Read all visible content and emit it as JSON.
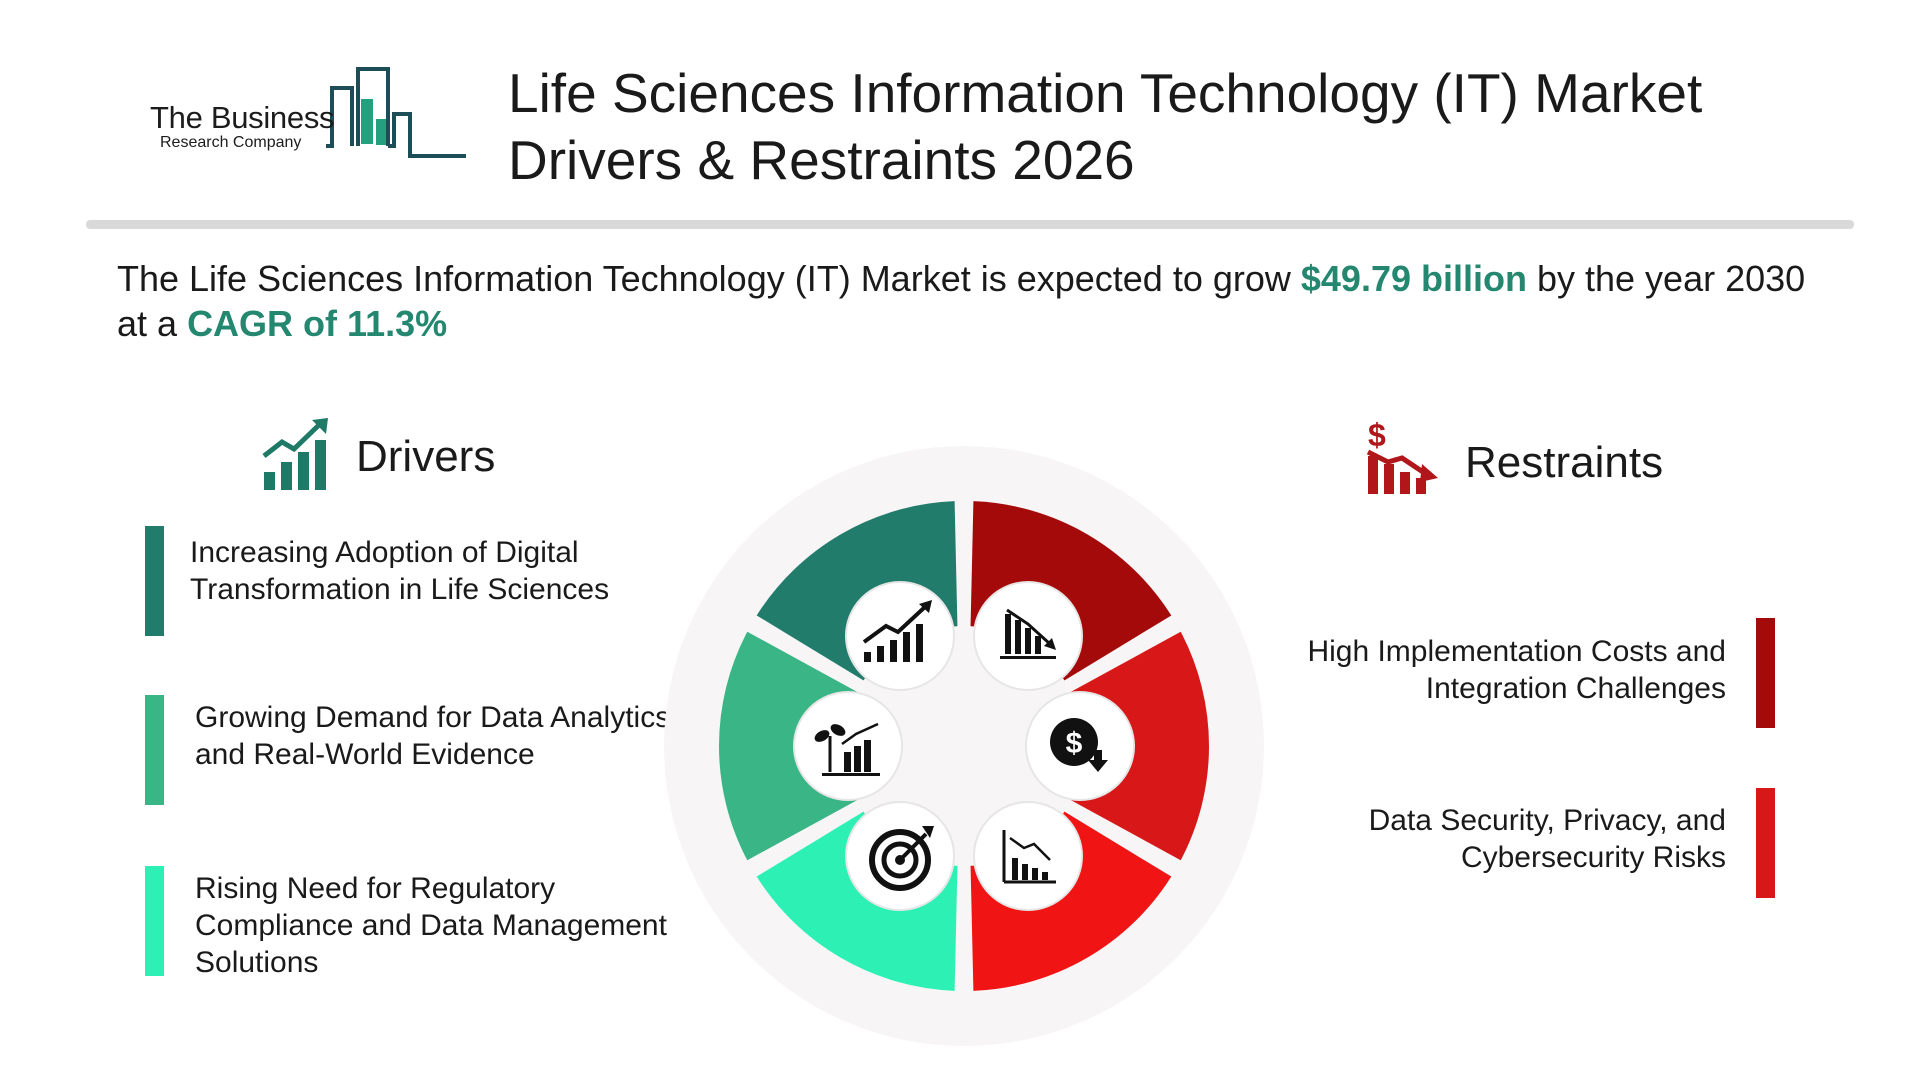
{
  "header": {
    "logo_name": "The Business",
    "logo_sub": "Research Company",
    "title_line1": "Life Sciences Information Technology (IT) Market",
    "title_line2": "Drivers & Restraints 2026"
  },
  "summary": {
    "part1": "The Life Sciences Information Technology (IT) Market is expected to grow ",
    "value": "$49.79 billion",
    "part2": " by the year 2030 at a ",
    "cagr": "CAGR of 11.3%"
  },
  "drivers": {
    "title": "Drivers",
    "items": [
      {
        "line1": "Increasing Adoption of Digital",
        "line2": "Transformation in Life Sciences",
        "line3": "",
        "color": "#227c6c"
      },
      {
        "line1": "Growing Demand for Data Analytics",
        "line2": "and Real-World Evidence",
        "line3": "",
        "color": "#3ab586"
      },
      {
        "line1": "Rising Need for Regulatory",
        "line2": "Compliance and Data Management",
        "line3": "Solutions",
        "color": "#2cf0b4"
      }
    ]
  },
  "restraints": {
    "title": "Restraints",
    "items": [
      {
        "line1": "High Implementation Costs and",
        "line2": "Integration Challenges",
        "color": "#a50a0a"
      },
      {
        "line1": "Data Security, Privacy, and",
        "line2": "Cybersecurity Risks",
        "color": "#d81818"
      }
    ]
  },
  "colors": {
    "accent": "#24876f",
    "driver_icon": "#1e7a66",
    "restraint_icon": "#b0161a",
    "wheel_bg": "#f7f5f5"
  }
}
